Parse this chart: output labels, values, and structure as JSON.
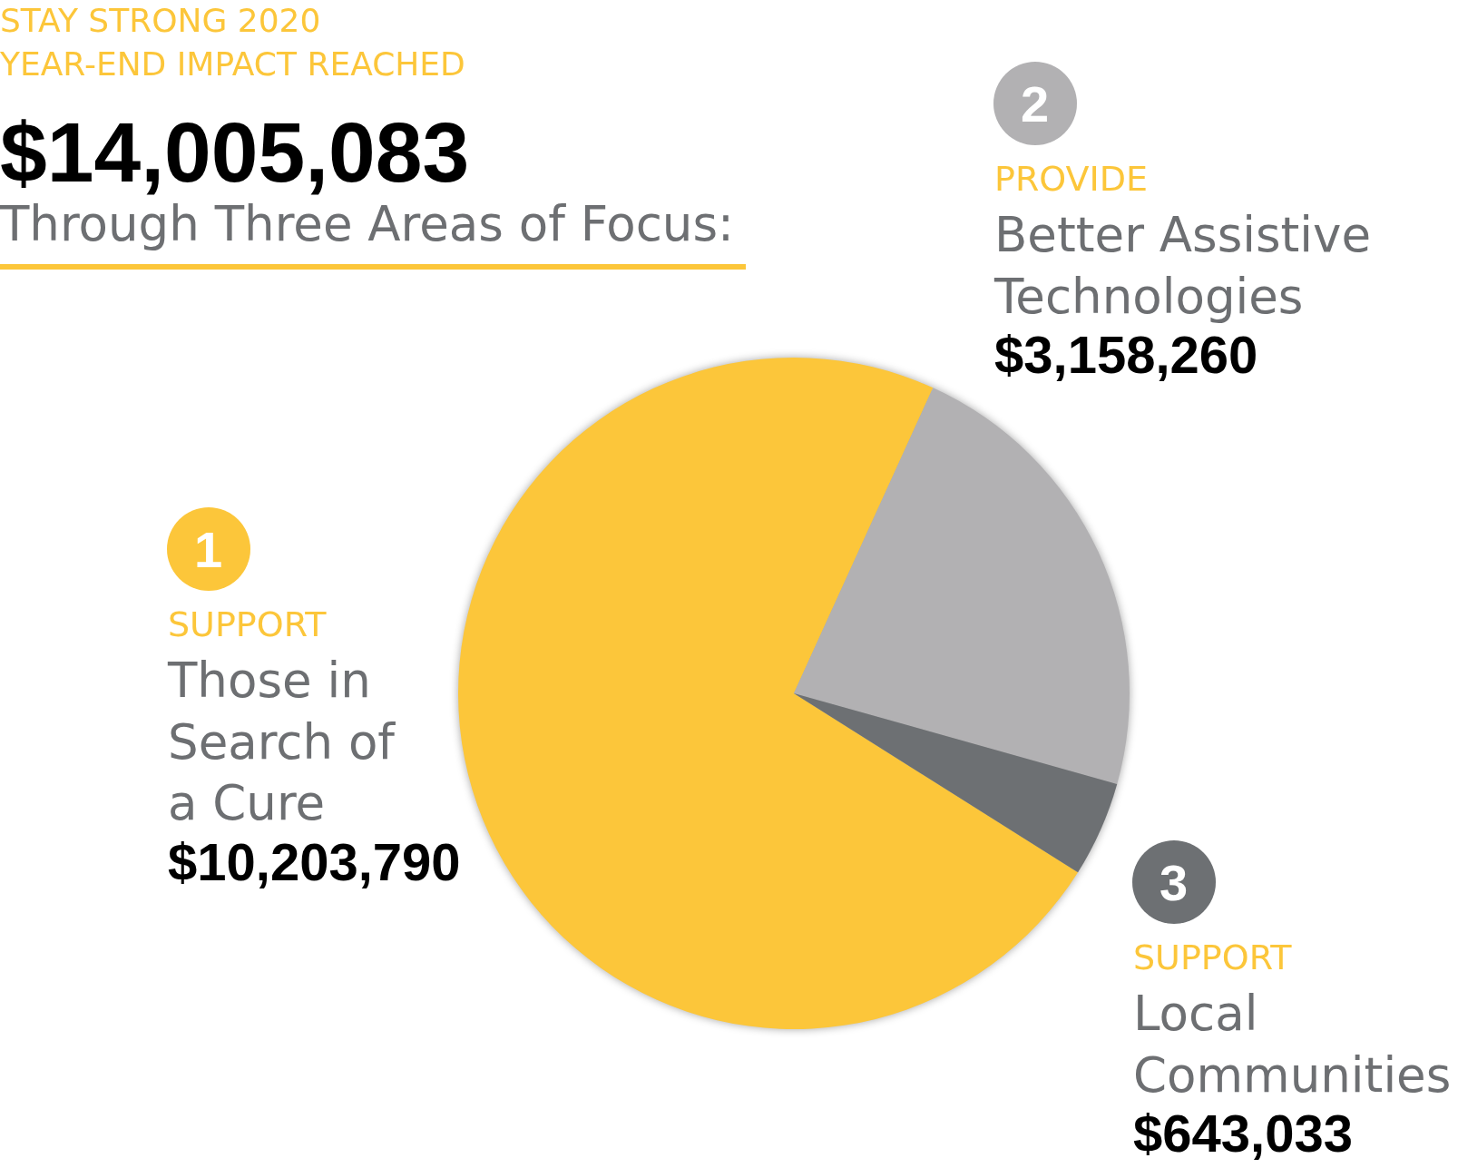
{
  "chart_data": {
    "type": "pie",
    "title": "STAY STRONG 2020 YEAR-END IMPACT REACHED",
    "subtitle": "Through Three Areas of Focus:",
    "categories": [
      "Those in Search of a Cure",
      "Better Assistive Technologies",
      "Local Communities"
    ],
    "values": [
      10203790,
      3158260,
      643033
    ],
    "value_labels": [
      "$10,203,790",
      "$3,158,260",
      "$643,033"
    ],
    "colors": [
      "#fcc63a",
      "#b2b1b3",
      "#6d7073"
    ],
    "annotations": [
      "$14,005,083",
      "1",
      "SUPPORT",
      "2",
      "PROVIDE",
      "3",
      "SUPPORT"
    ]
  }
}
